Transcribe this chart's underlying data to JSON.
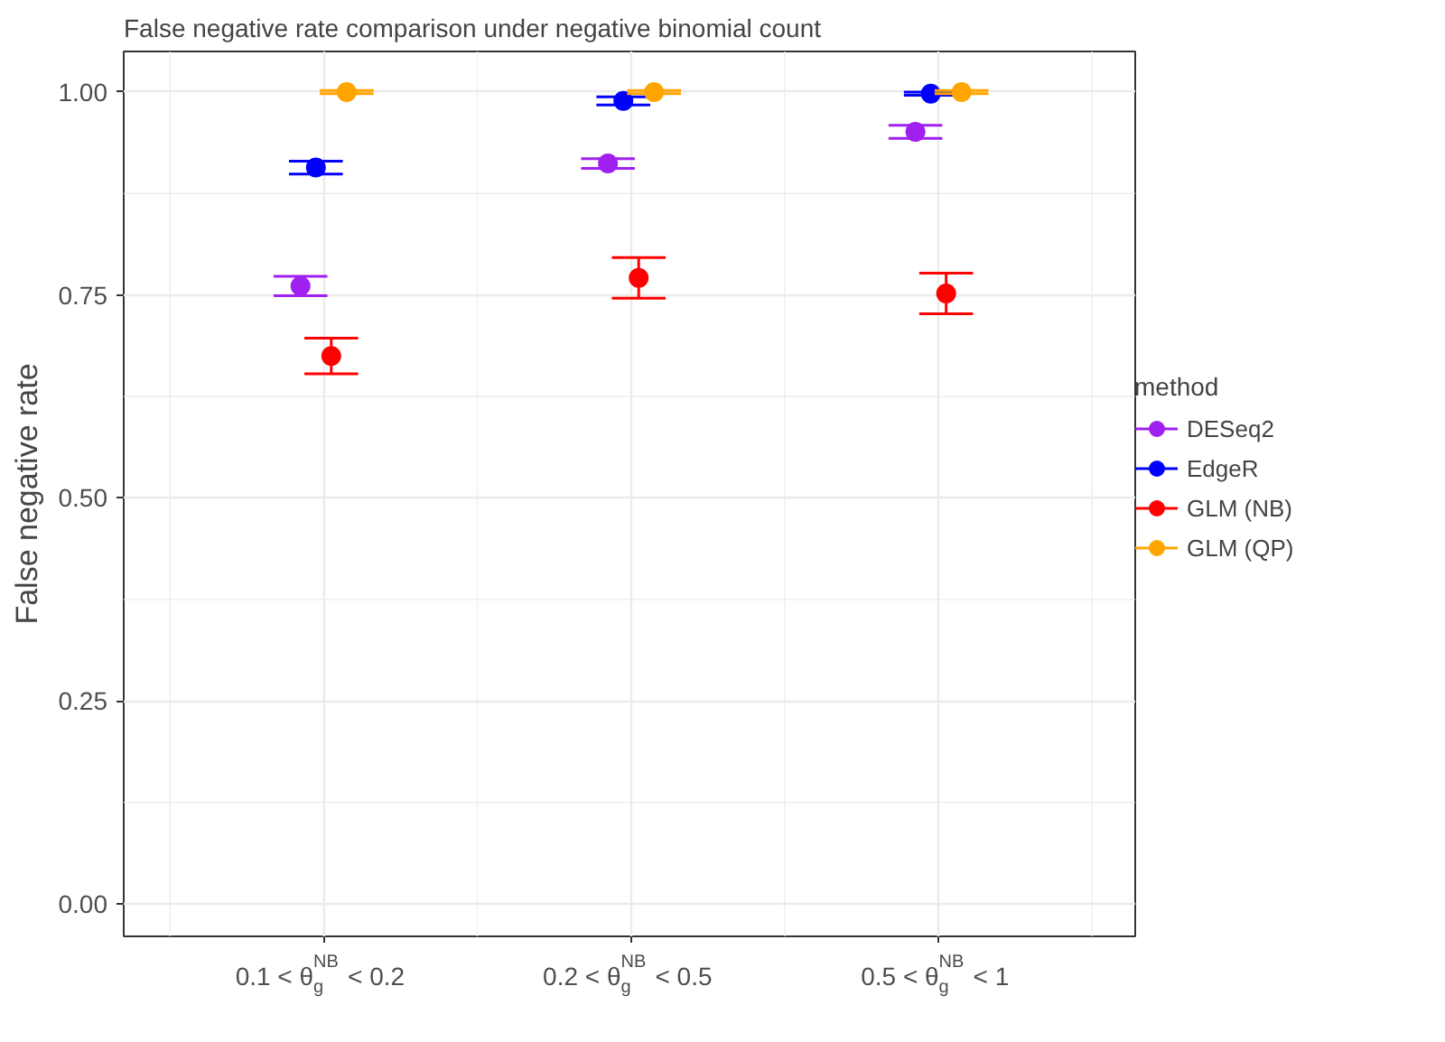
{
  "chart_data": {
    "type": "scatter",
    "title": "False negative rate comparison under negative binomial count",
    "xlabel": null,
    "ylabel": "False negative rate",
    "legend_title": "method",
    "categories": [
      "0.1 < θ$^{NB}$$_{g}$ < 0.2",
      "0.2 < θ$^{NB}$$_{g}$ < 0.5",
      "0.5 < θ$^{NB}$$_{g}$ < 1"
    ],
    "series": [
      {
        "name": "DESeq2",
        "color": "#a020f0",
        "values": [
          0.761,
          0.912,
          0.951
        ],
        "errors": [
          0.012,
          0.006,
          0.008
        ]
      },
      {
        "name": "EdgeR",
        "color": "#0000ff",
        "values": [
          0.907,
          0.989,
          0.998
        ],
        "errors": [
          0.008,
          0.005,
          0.002
        ]
      },
      {
        "name": "GLM (NB)",
        "color": "#ff0000",
        "values": [
          0.675,
          0.771,
          0.752
        ],
        "errors": [
          0.022,
          0.025,
          0.025
        ]
      },
      {
        "name": "GLM (QP)",
        "color": "#ffa500",
        "values": [
          1.0,
          1.0,
          1.0
        ],
        "errors": [
          0.002,
          0.002,
          0.002
        ]
      }
    ],
    "ylim": [
      -0.04,
      1.05
    ],
    "yticks": [
      {
        "value": 0,
        "label": "0.00"
      },
      {
        "value": 0.25,
        "label": "0.25"
      },
      {
        "value": 0.5,
        "label": "0.50"
      },
      {
        "value": 0.75,
        "label": "0.75"
      },
      {
        "value": 1,
        "label": "1.00"
      }
    ],
    "grid": true,
    "legend": "right",
    "marker": "circle"
  }
}
